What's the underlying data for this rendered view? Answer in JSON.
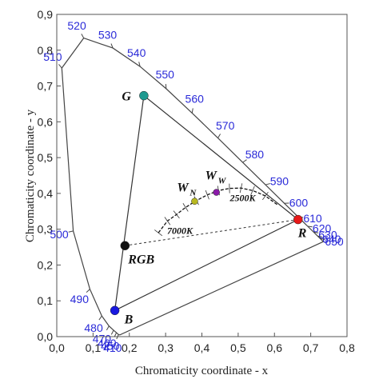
{
  "chart_data": {
    "type": "scatter",
    "title": "",
    "xlabel": "Chromaticity coordinate - x",
    "ylabel": "Chromaticity coordinate - y",
    "xlim": [
      0.0,
      0.8
    ],
    "ylim": [
      0.0,
      0.9
    ],
    "xticks": [
      "0,0",
      "0,1",
      "0,2",
      "0,3",
      "0,4",
      "0,5",
      "0,6",
      "0,7",
      "0,8"
    ],
    "yticks": [
      "0,0",
      "0,1",
      "0,2",
      "0,3",
      "0,4",
      "0,5",
      "0,6",
      "0,7",
      "0,8",
      "0,9"
    ],
    "grid": false,
    "spectral_locus": [
      {
        "x": 0.1741,
        "y": 0.005,
        "label": ""
      },
      {
        "x": 0.1736,
        "y": 0.0049,
        "label": ""
      },
      {
        "x": 0.1703,
        "y": 0.0058,
        "label": "410"
      },
      {
        "x": 0.1644,
        "y": 0.0109,
        "label": "450"
      },
      {
        "x": 0.1566,
        "y": 0.0177,
        "label": "460"
      },
      {
        "x": 0.144,
        "y": 0.0297,
        "label": "470"
      },
      {
        "x": 0.1241,
        "y": 0.0578,
        "label": "480"
      },
      {
        "x": 0.0913,
        "y": 0.1327,
        "label": "490"
      },
      {
        "x": 0.0454,
        "y": 0.295,
        "label": "500"
      },
      {
        "x": 0.0139,
        "y": 0.7502,
        "label": "510"
      },
      {
        "x": 0.0743,
        "y": 0.8338,
        "label": "520"
      },
      {
        "x": 0.1547,
        "y": 0.8059,
        "label": "530"
      },
      {
        "x": 0.2296,
        "y": 0.7543,
        "label": "540"
      },
      {
        "x": 0.3016,
        "y": 0.6923,
        "label": "550"
      },
      {
        "x": 0.3731,
        "y": 0.6245,
        "label": "560"
      },
      {
        "x": 0.4441,
        "y": 0.5547,
        "label": "570"
      },
      {
        "x": 0.5125,
        "y": 0.4866,
        "label": "580"
      },
      {
        "x": 0.5752,
        "y": 0.4242,
        "label": "590"
      },
      {
        "x": 0.627,
        "y": 0.3725,
        "label": "600"
      },
      {
        "x": 0.6658,
        "y": 0.334,
        "label": "610"
      },
      {
        "x": 0.6915,
        "y": 0.3083,
        "label": "620"
      },
      {
        "x": 0.7079,
        "y": 0.292,
        "label": "630"
      },
      {
        "x": 0.719,
        "y": 0.2809,
        "label": "640"
      },
      {
        "x": 0.726,
        "y": 0.274,
        "label": "650"
      },
      {
        "x": 0.7347,
        "y": 0.2653,
        "label": ""
      }
    ],
    "points": [
      {
        "name": "R",
        "x": 0.665,
        "y": 0.327,
        "color": "#e81818"
      },
      {
        "name": "G",
        "x": 0.24,
        "y": 0.673,
        "color": "#1f9a90"
      },
      {
        "name": "B",
        "x": 0.16,
        "y": 0.073,
        "color": "#1818e0"
      },
      {
        "name": "RGB",
        "x": 0.188,
        "y": 0.254,
        "color": "#111111"
      },
      {
        "name": "W",
        "sub": "N",
        "x": 0.38,
        "y": 0.378,
        "color": "#b8b820"
      },
      {
        "name": "W",
        "sub": "W",
        "x": 0.44,
        "y": 0.403,
        "color": "#8a1aa8"
      }
    ],
    "triangle": [
      "R",
      "G",
      "B"
    ],
    "planckian_locus": [
      {
        "x": 0.28,
        "y": 0.29
      },
      {
        "x": 0.305,
        "y": 0.323
      },
      {
        "x": 0.33,
        "y": 0.341
      },
      {
        "x": 0.355,
        "y": 0.361
      },
      {
        "x": 0.385,
        "y": 0.38
      },
      {
        "x": 0.415,
        "y": 0.396
      },
      {
        "x": 0.446,
        "y": 0.408
      },
      {
        "x": 0.476,
        "y": 0.414
      },
      {
        "x": 0.508,
        "y": 0.415
      },
      {
        "x": 0.54,
        "y": 0.408
      },
      {
        "x": 0.575,
        "y": 0.393
      },
      {
        "x": 0.61,
        "y": 0.367
      }
    ],
    "cct_labels": [
      {
        "text": "2500K",
        "x": 0.477,
        "y": 0.378
      },
      {
        "text": "7000K",
        "x": 0.304,
        "y": 0.287
      }
    ]
  }
}
